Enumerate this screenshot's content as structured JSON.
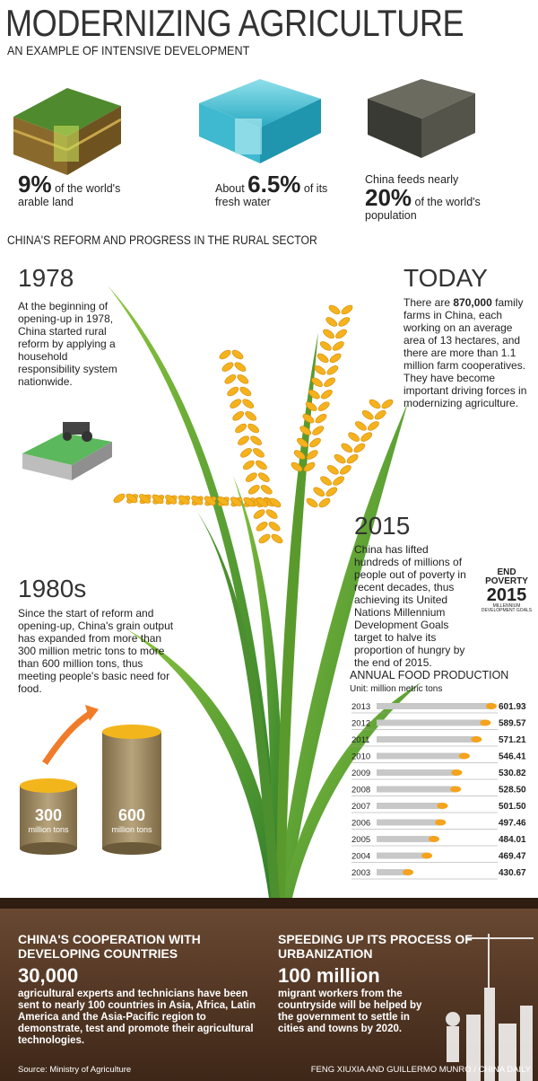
{
  "header": {
    "title": "MODERNIZING AGRICULTURE",
    "subtitle": "AN EXAMPLE OF INTENSIVE DEVELOPMENT"
  },
  "stats": [
    {
      "value": "9%",
      "text": "of the world's arable land"
    },
    {
      "prefix": "About",
      "value": "6.5%",
      "text": "of its fresh water"
    },
    {
      "prefix": "China feeds nearly",
      "value": "20%",
      "text": "of the world's population"
    }
  ],
  "section_title": "CHINA'S REFORM AND PROGRESS IN THE RURAL SECTOR",
  "y1978": {
    "heading": "1978",
    "text": "At the beginning of opening-up in 1978, China started rural reform by applying a household responsibility system nationwide."
  },
  "today": {
    "heading": "TODAY",
    "text_before": "There are",
    "highlight": "870,000",
    "text_after": "family farms in China, each working on an average area of 13 hectares, and there are more than 1.1 million farm cooperatives. They have become important driving forces in modernizing agriculture."
  },
  "y2015": {
    "heading": "2015",
    "text": "China has lifted hundreds of millions of people out of poverty in recent decades, thus achieving its United Nations Millennium Development Goals target to halve its proportion of hungry by the end of 2015.",
    "logo_top": "END POVERTY",
    "logo_year": "2015",
    "logo_sub": "MILLENNIUM DEVELOPMENT GOALS"
  },
  "y1980s": {
    "heading": "1980s",
    "text": "Since the start of reform and opening-up, China's grain output has expanded from more than 300 million metric tons to more than 600 million tons, thus meeting people's basic need for food.",
    "from_value": "300",
    "to_value": "600",
    "unit": "million tons"
  },
  "chart_data": {
    "type": "bar",
    "orientation": "horizontal",
    "title": "ANNUAL FOOD PRODUCTION",
    "subtitle": "Unit: million metric tons",
    "categories": [
      "2013",
      "2012",
      "2011",
      "2010",
      "2009",
      "2008",
      "2007",
      "2006",
      "2005",
      "2004",
      "2003"
    ],
    "values": [
      601.93,
      589.57,
      571.21,
      546.41,
      530.82,
      528.5,
      501.5,
      497.46,
      484.01,
      469.47,
      430.67
    ],
    "value_labels": [
      "601.93",
      "589.57",
      "571.21",
      "546.41",
      "530.82",
      "528.50",
      "501.50",
      "497.46",
      "484.01",
      "469.47",
      "430.67"
    ],
    "color": "#c8c8c8"
  },
  "cooperation": {
    "heading": "CHINA'S COOPERATION WITH DEVELOPING COUNTRIES",
    "number": "30,000",
    "text": "agricultural experts and technicians have been sent to nearly 100 countries in Asia, Africa, Latin America and the Asia-Pacific region to demonstrate, test and promote their agricultural technologies."
  },
  "urbanization": {
    "heading": "SPEEDING UP ITS PROCESS OF URBANIZATION",
    "number": "100 million",
    "text": "migrant workers from the countryside will be helped by the government to settle in cities and towns by 2020."
  },
  "source": "Source: Ministry of Agriculture",
  "credit": "FENG XIUXIA AND GUILLERMO MUNRO / CHINA DAILY"
}
